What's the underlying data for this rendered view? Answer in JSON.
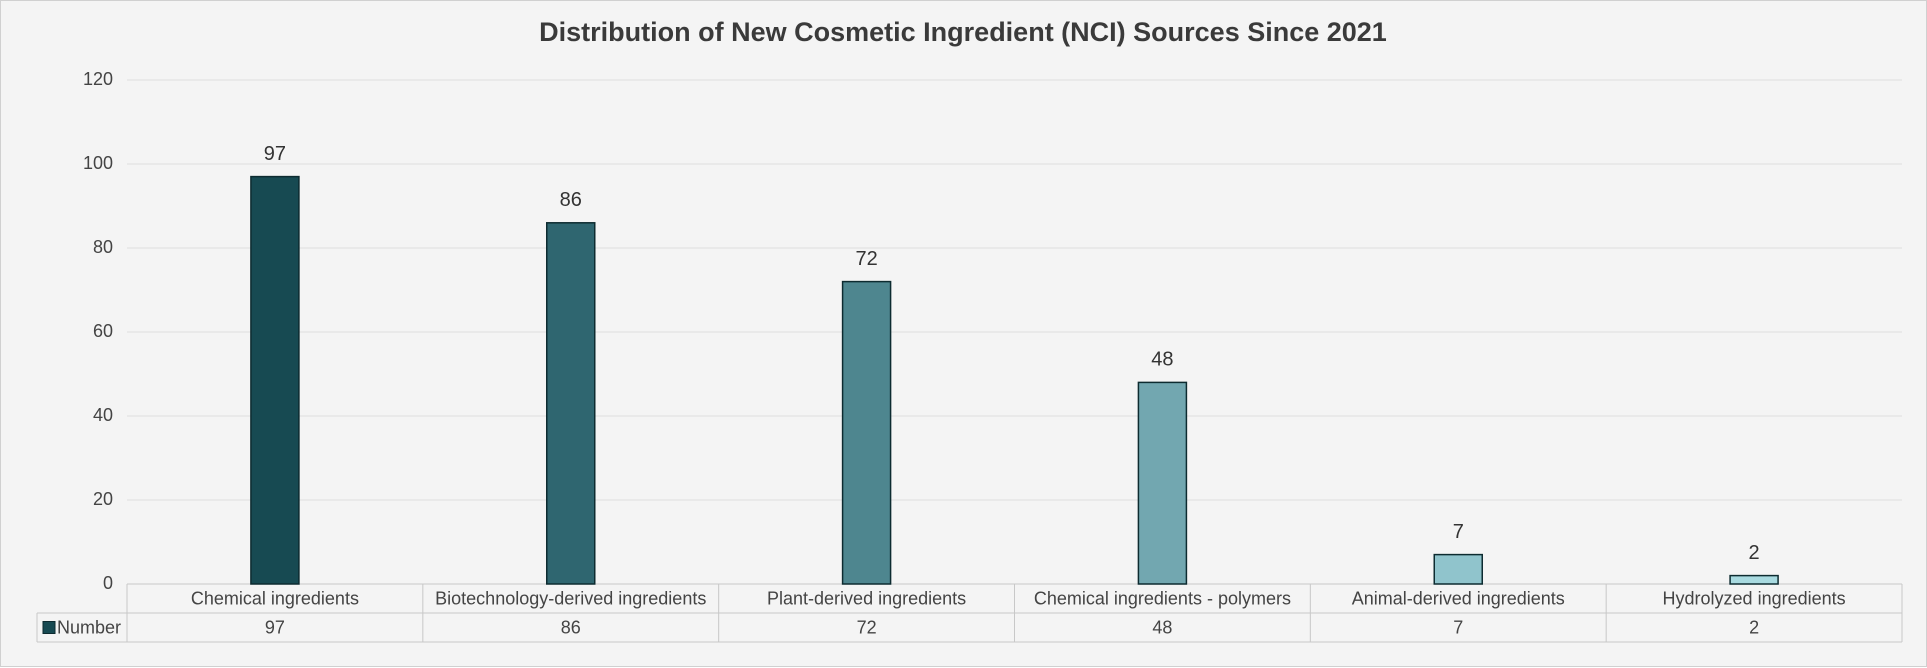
{
  "chart_data": {
    "type": "bar",
    "title": "Distribution of New Cosmetic Ingredient (NCI) Sources Since 2021",
    "categories": [
      "Chemical ingredients",
      "Biotechnology-derived ingredients",
      "Plant-derived ingredients",
      "Chemical ingredients - polymers",
      "Animal-derived ingredients",
      "Hydrolyzed ingredients"
    ],
    "series": [
      {
        "name": "Number",
        "color": "#174a52",
        "values": [
          97,
          86,
          72,
          48,
          7,
          2
        ]
      }
    ],
    "colors": [
      "#174a52",
      "#2f6670",
      "#4e868f",
      "#72a7b0",
      "#90c4cc",
      "#a8dae0"
    ],
    "ylim": [
      0,
      120
    ],
    "yticks": [
      0,
      20,
      40,
      60,
      80,
      100,
      120
    ],
    "grid": true
  }
}
